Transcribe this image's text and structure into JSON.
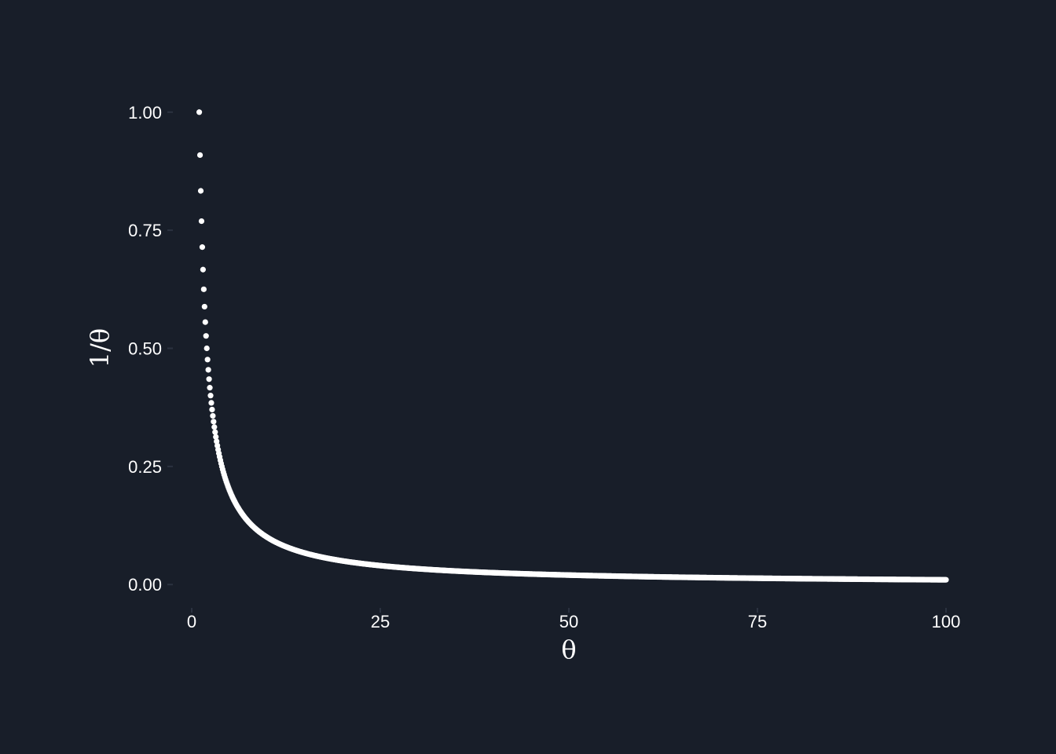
{
  "chart_data": {
    "type": "scatter",
    "title": "",
    "xlabel": "θ",
    "ylabel": "1/θ",
    "xlim": [
      -2.5,
      102.5
    ],
    "ylim": [
      -0.0495,
      1.0495
    ],
    "x_ticks": [
      {
        "value": 0,
        "label": "0"
      },
      {
        "value": 25,
        "label": "25"
      },
      {
        "value": 50,
        "label": "50"
      },
      {
        "value": 75,
        "label": "75"
      },
      {
        "value": 100,
        "label": "100"
      }
    ],
    "y_ticks": [
      {
        "value": 0,
        "label": "0.00"
      },
      {
        "value": 0.25,
        "label": "0.25"
      },
      {
        "value": 0.5,
        "label": "0.50"
      },
      {
        "value": 0.75,
        "label": "0.75"
      },
      {
        "value": 1.0,
        "label": "1.00"
      }
    ],
    "series": [
      {
        "function": "y = 1/x",
        "x_start": 1,
        "x_end": 100,
        "x_step": 0.1,
        "color": "#ffffff"
      }
    ],
    "grid": false,
    "legend": "none"
  },
  "colors": {
    "background": "#181e29",
    "foreground": "#ffffff"
  }
}
